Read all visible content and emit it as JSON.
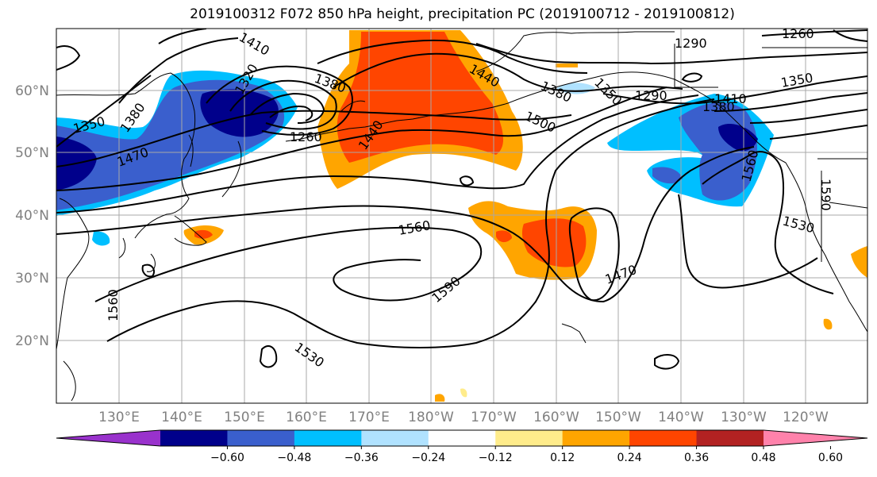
{
  "title": "2019100312 F072 850 hPa height, precipitation PC (2019100712 - 2019100812)",
  "lat_labels": [
    "60°N",
    "50°N",
    "40°N",
    "30°N",
    "20°N"
  ],
  "lon_labels": [
    "130°E",
    "140°E",
    "150°E",
    "160°E",
    "170°E",
    "180°W",
    "170°W",
    "160°W",
    "150°W",
    "140°W",
    "130°W",
    "120°W"
  ],
  "contour_labels": [
    "1410",
    "1350",
    "1380",
    "1470",
    "1320",
    "1380",
    "1260",
    "1440",
    "1440",
    "1380",
    "1350",
    "1290",
    "1290",
    "1260",
    "1350",
    "1500",
    "1380",
    "1410",
    "1560",
    "1560",
    "1590",
    "1530",
    "1470",
    "1560",
    "1590",
    "1530"
  ],
  "colorbar": {
    "ticks": [
      "−0.60",
      "−0.48",
      "−0.36",
      "−0.24",
      "−0.12",
      "0.12",
      "0.24",
      "0.36",
      "0.48",
      "0.60"
    ],
    "colors": [
      "#9932cc",
      "#00008b",
      "#3a5fcd",
      "#00bfff",
      "#b0e2ff",
      "#ffffff",
      "#ffec8b",
      "#ffa500",
      "#ff4500",
      "#b22222",
      "#ff82ab"
    ]
  }
}
